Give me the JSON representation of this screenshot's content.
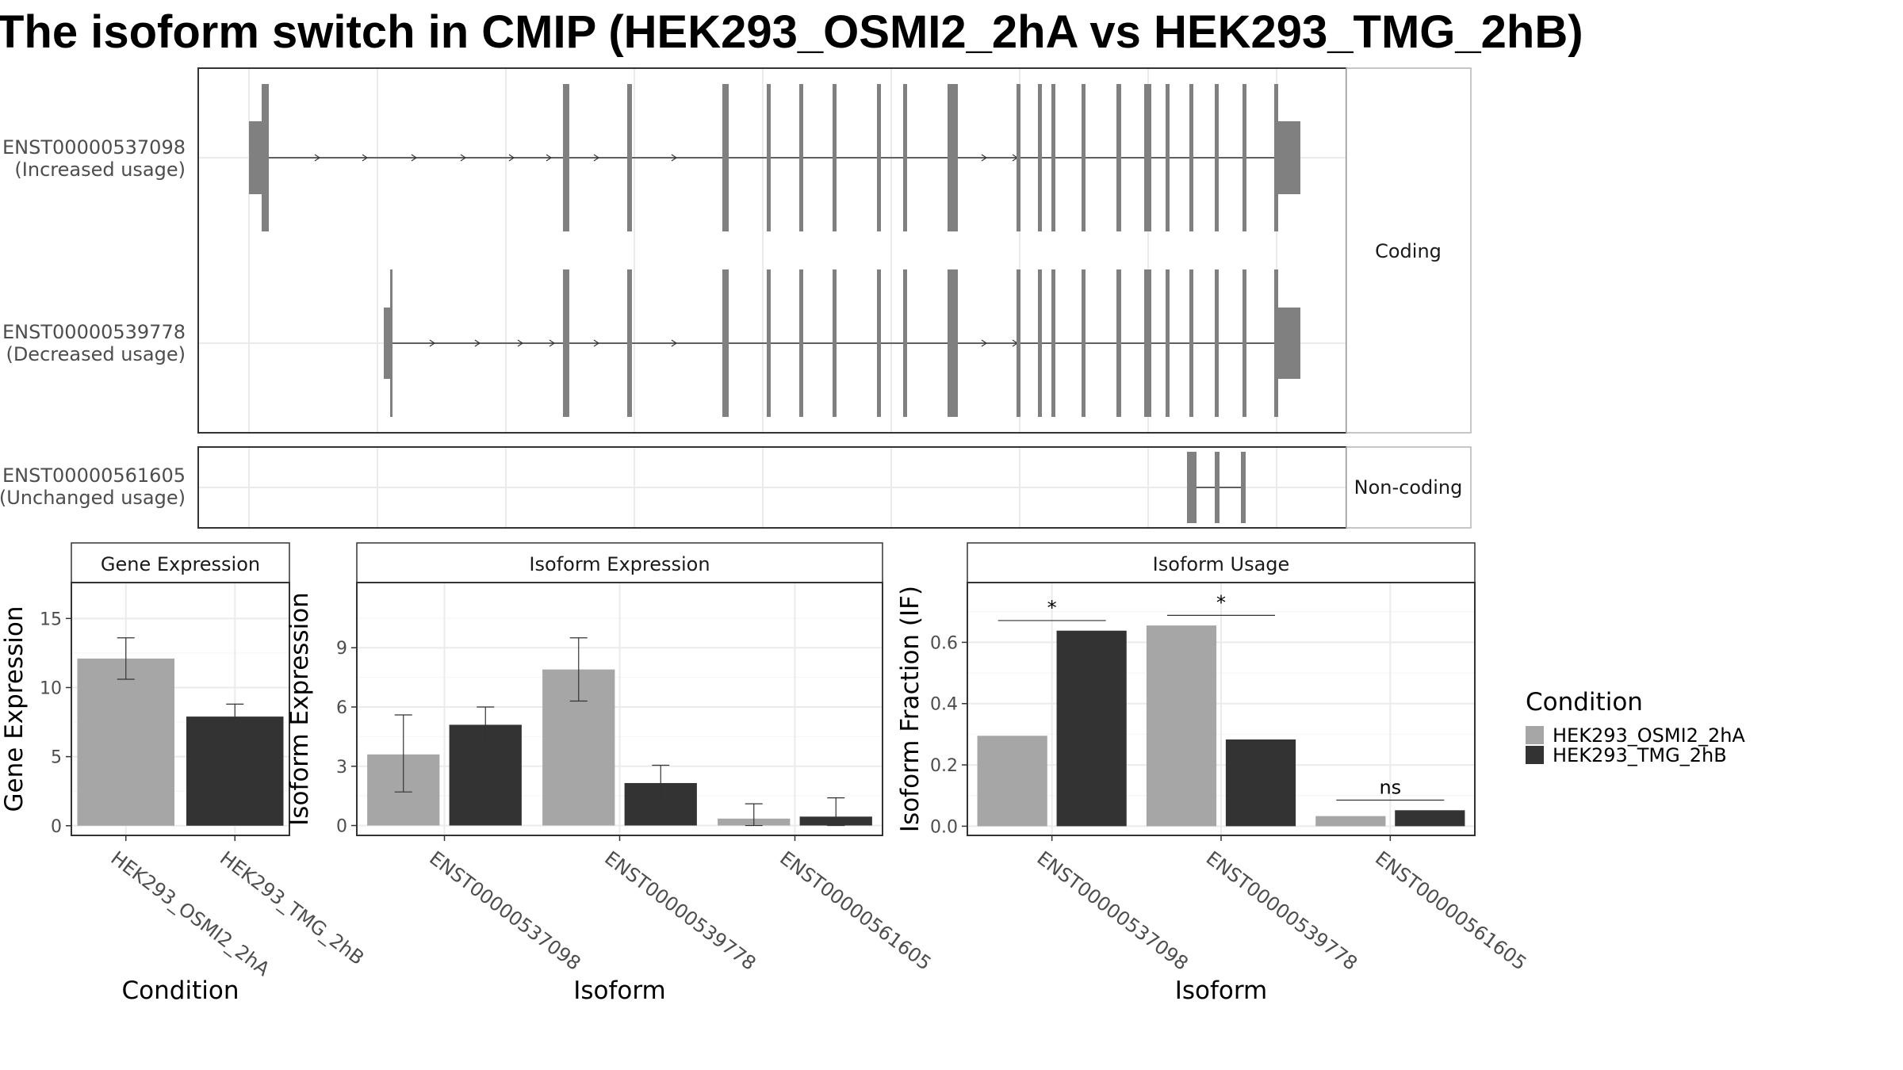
{
  "title": "The isoform switch in CMIP (HEK293_OSMI2_2hA vs HEK293_TMG_2hB)",
  "colors": {
    "cond_a": "#a6a6a6",
    "cond_b": "#333333",
    "exon": "#808080",
    "grid": "#ebebeb",
    "strip_bg": "#ffffff"
  },
  "structure": {
    "groups": [
      {
        "label": "Coding",
        "isoforms": [
          {
            "id": "ENST00000537098",
            "usage": "(Increased usage)"
          },
          {
            "id": "ENST00000539778",
            "usage": "(Decreased usage)"
          }
        ]
      },
      {
        "label": "Non-coding",
        "isoforms": [
          {
            "id": "ENST00000561605",
            "usage": "(Unchanged usage)"
          }
        ]
      }
    ]
  },
  "legend": {
    "title": "Condition",
    "items": [
      "HEK293_OSMI2_2hA",
      "HEK293_TMG_2hB"
    ]
  },
  "chart_data": [
    {
      "type": "bar",
      "title": "Gene Expression",
      "xlabel": "Condition",
      "ylabel": "Gene Expression",
      "categories": [
        "HEK293_OSMI2_2hA",
        "HEK293_TMG_2hB"
      ],
      "values": [
        12.1,
        7.9
      ],
      "error_low": [
        10.6,
        7.0
      ],
      "error_high": [
        13.6,
        8.8
      ],
      "ylim": [
        -0.7,
        17.6
      ],
      "yticks": [
        0,
        5,
        10,
        15
      ]
    },
    {
      "type": "bar",
      "title": "Isoform Expression",
      "xlabel": "Isoform",
      "ylabel": "Isoform Expression",
      "categories": [
        "ENST00000537098",
        "ENST00000539778",
        "ENST00000561605"
      ],
      "series": [
        {
          "name": "HEK293_OSMI2_2hA",
          "values": [
            3.6,
            7.9,
            0.35
          ],
          "error_low": [
            1.7,
            6.3,
            0.0
          ],
          "error_high": [
            5.6,
            9.5,
            1.1
          ]
        },
        {
          "name": "HEK293_TMG_2hB",
          "values": [
            5.1,
            2.15,
            0.45
          ],
          "error_low": [
            4.1,
            1.25,
            0.0
          ],
          "error_high": [
            6.0,
            3.05,
            1.4
          ]
        }
      ],
      "ylim": [
        -0.5,
        12.3
      ],
      "yticks": [
        0,
        3,
        6,
        9
      ]
    },
    {
      "type": "bar",
      "title": "Isoform Usage",
      "xlabel": "Isoform",
      "ylabel": "Isoform Fraction (IF)",
      "categories": [
        "ENST00000537098",
        "ENST00000539778",
        "ENST00000561605"
      ],
      "series": [
        {
          "name": "HEK293_OSMI2_2hA",
          "values": [
            0.295,
            0.655,
            0.033
          ]
        },
        {
          "name": "HEK293_TMG_2hB",
          "values": [
            0.638,
            0.283,
            0.052
          ]
        }
      ],
      "significance": [
        {
          "label": "*",
          "y": 0.671
        },
        {
          "label": "*",
          "y": 0.688
        },
        {
          "label": "ns",
          "y": 0.085
        }
      ],
      "ylim": [
        -0.03,
        0.795
      ],
      "yticks": [
        0.0,
        0.2,
        0.4,
        0.6
      ],
      "ytick_labels": [
        "0.0",
        "0.2",
        "0.4",
        "0.6"
      ]
    }
  ]
}
